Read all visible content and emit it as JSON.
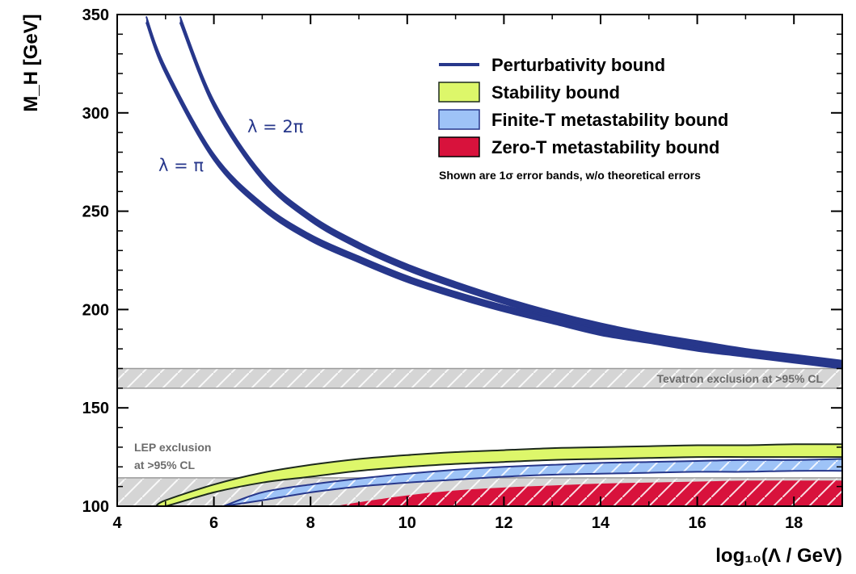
{
  "colors": {
    "perturbativity": "#27378b",
    "stability_fill": "#ddf76a",
    "stability_edge": "#1d2a1d",
    "finite_t_fill": "#9ec3f7",
    "finite_t_edge": "#27378b",
    "zero_t_fill": "#d8123c",
    "exclusion_fill": "#d5d5d5",
    "exclusion_edge": "#9a9a9a",
    "exclusion_text": "#6b6b6b"
  },
  "chart_data": {
    "type": "area",
    "xlabel": "log₁₀(Λ / GeV)",
    "ylabel": "M_H [GeV]",
    "xlim": [
      4,
      19
    ],
    "ylim": [
      100,
      350
    ],
    "x_ticks": [
      4,
      6,
      8,
      10,
      12,
      14,
      16,
      18
    ],
    "y_ticks": [
      100,
      150,
      200,
      250,
      300,
      350
    ],
    "grid": false,
    "legend_position": "top-right",
    "legend": [
      {
        "label": "Perturbativity bound",
        "swatch": "line",
        "color_key": "perturbativity"
      },
      {
        "label": "Stability bound",
        "swatch": "box",
        "color_key": "stability_fill"
      },
      {
        "label": "Finite-T metastability bound",
        "swatch": "box",
        "color_key": "finite_t_fill"
      },
      {
        "label": "Zero-T metastability bound",
        "swatch": "box",
        "color_key": "zero_t_fill"
      }
    ],
    "legend_note": "Shown are 1σ error bands, w/o theoretical errors",
    "curve_labels": [
      {
        "text": "λ = π",
        "series": "Perturbativity λ = π"
      },
      {
        "text": "λ = 2π",
        "series": "Perturbativity λ = 2π"
      }
    ],
    "series": [
      {
        "name": "Perturbativity λ = π",
        "kind": "band",
        "color_key": "perturbativity",
        "x": [
          4.6,
          5,
          6,
          7,
          8,
          9,
          10,
          11,
          12,
          13,
          14,
          15,
          16,
          17,
          18,
          19
        ],
        "y_low": [
          346,
          320,
          276,
          251,
          235,
          224,
          214,
          206,
          199,
          193,
          187,
          183,
          179,
          176,
          173,
          170
        ],
        "y_high": [
          349,
          323,
          279,
          254,
          238,
          227,
          217,
          209,
          202,
          196,
          190,
          186,
          182,
          179,
          176,
          173
        ]
      },
      {
        "name": "Perturbativity λ = 2π",
        "kind": "band",
        "color_key": "perturbativity",
        "x": [
          5.3,
          6,
          7,
          8,
          9,
          10,
          11,
          12,
          13,
          14,
          15,
          16,
          17,
          18,
          19
        ],
        "y_low": [
          346,
          303,
          266,
          245,
          231,
          220,
          211,
          203,
          196,
          190,
          185,
          181,
          177,
          174,
          171
        ],
        "y_high": [
          349,
          306,
          269,
          248,
          234,
          223,
          214,
          206,
          199,
          193,
          188,
          184,
          180,
          177,
          174
        ]
      },
      {
        "name": "Stability bound",
        "kind": "band",
        "fill_key": "stability_fill",
        "edge_key": "stability_edge",
        "x": [
          4.8,
          5,
          6,
          7,
          8,
          9,
          10,
          11,
          12,
          13,
          14,
          15,
          16,
          17,
          18,
          19
        ],
        "y_low": [
          100,
          100,
          107,
          112,
          115,
          118,
          120,
          121.5,
          122.5,
          123.5,
          124,
          124.5,
          125,
          125,
          125,
          125
        ],
        "y_high": [
          100,
          103,
          111,
          117,
          121,
          124,
          126,
          127.5,
          128.5,
          129.5,
          130,
          130.5,
          131,
          131,
          131.5,
          131.5
        ]
      },
      {
        "name": "Finite-T metastability bound",
        "kind": "band",
        "fill_key": "finite_t_fill",
        "edge_key": "finite_t_edge",
        "x": [
          6.2,
          7,
          8,
          9,
          10,
          11,
          12,
          13,
          14,
          15,
          16,
          17,
          18,
          19
        ],
        "y_low": [
          100,
          103,
          107,
          110,
          112,
          113.5,
          115,
          116,
          116.5,
          117,
          117.5,
          117.5,
          118,
          118
        ],
        "y_high": [
          100,
          107,
          111,
          114,
          116.5,
          118.5,
          120,
          121,
          122,
          122.5,
          123,
          123.5,
          123.5,
          124
        ]
      },
      {
        "name": "Zero-T metastability bound",
        "kind": "band",
        "fill_key": "zero_t_fill",
        "x": [
          8.5,
          9,
          10,
          11,
          12,
          13,
          14,
          15,
          16,
          17,
          18,
          19
        ],
        "y_low": [
          100,
          100,
          100,
          100,
          100,
          100,
          100,
          100,
          100,
          100,
          100,
          100
        ],
        "y_high": [
          100,
          102,
          105.5,
          108,
          109.5,
          110.5,
          111.5,
          112,
          112.5,
          113,
          113,
          113
        ]
      }
    ],
    "exclusions": [
      {
        "label_lines": [
          "Tevatron exclusion at >95% CL"
        ],
        "y_min": 160,
        "y_max": 170
      },
      {
        "label_lines": [
          "LEP exclusion",
          "at >95% CL"
        ],
        "y_min": 100,
        "y_max": 114.4
      }
    ]
  }
}
